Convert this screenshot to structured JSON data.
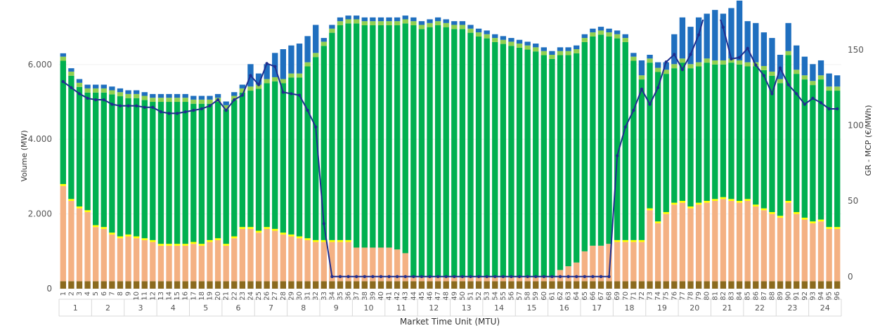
{
  "chart_data": {
    "type": "bar",
    "stacked": true,
    "xlabel": "Market Time Unit (MTU)",
    "ylabel": "Volume (MW)",
    "y2label": "GR - MCP (€/MWh)",
    "ylim": [
      0,
      7200
    ],
    "y2lim": [
      -8,
      170
    ],
    "yticks": [
      {
        "v": 0,
        "label": "0"
      },
      {
        "v": 2000,
        "label": "2.000"
      },
      {
        "v": 4000,
        "label": "4.000"
      },
      {
        "v": 6000,
        "label": "6.000"
      }
    ],
    "y2ticks": [
      {
        "v": 0,
        "label": "0"
      },
      {
        "v": 50,
        "label": "50"
      },
      {
        "v": 100,
        "label": "100"
      },
      {
        "v": 150,
        "label": "150"
      }
    ],
    "x": [
      1,
      2,
      3,
      4,
      5,
      6,
      7,
      8,
      9,
      10,
      11,
      12,
      13,
      14,
      15,
      16,
      17,
      18,
      19,
      20,
      21,
      22,
      23,
      24,
      25,
      26,
      27,
      28,
      29,
      30,
      31,
      32,
      33,
      34,
      35,
      36,
      37,
      38,
      39,
      40,
      41,
      42,
      43,
      44,
      45,
      46,
      47,
      48,
      49,
      50,
      51,
      52,
      53,
      54,
      55,
      56,
      57,
      58,
      59,
      60,
      61,
      62,
      63,
      64,
      65,
      66,
      67,
      68,
      69,
      70,
      71,
      72,
      73,
      74,
      75,
      76,
      77,
      78,
      79,
      80,
      81,
      82,
      83,
      84,
      85,
      86,
      87,
      88,
      89,
      90,
      91,
      92,
      93,
      94,
      95,
      96
    ],
    "hours": [
      "1",
      "2",
      "3",
      "4",
      "5",
      "6",
      "7",
      "8",
      "9",
      "10",
      "11",
      "12",
      "13",
      "14",
      "15",
      "16",
      "17",
      "18",
      "19",
      "20",
      "21",
      "22",
      "23",
      "24"
    ],
    "series": [
      {
        "color": "#8b6a1e",
        "values": [
          200,
          200,
          200,
          200,
          200,
          200,
          200,
          200,
          200,
          200,
          200,
          200,
          200,
          200,
          200,
          200,
          200,
          200,
          200,
          200,
          200,
          200,
          200,
          200,
          200,
          200,
          200,
          200,
          200,
          200,
          200,
          200,
          200,
          200,
          200,
          200,
          200,
          200,
          200,
          200,
          200,
          200,
          200,
          200,
          200,
          200,
          200,
          200,
          200,
          200,
          200,
          200,
          200,
          200,
          200,
          200,
          200,
          200,
          200,
          200,
          200,
          200,
          200,
          200,
          200,
          200,
          200,
          200,
          200,
          200,
          200,
          200,
          200,
          200,
          200,
          200,
          200,
          200,
          200,
          200,
          200,
          200,
          200,
          200,
          200,
          200,
          200,
          200,
          200,
          200,
          200,
          200,
          200,
          200,
          200,
          200
        ]
      },
      {
        "color": "#f4b183",
        "values": [
          2550,
          2150,
          1950,
          1850,
          1450,
          1400,
          1250,
          1150,
          1200,
          1150,
          1100,
          1050,
          950,
          950,
          950,
          950,
          1000,
          950,
          1050,
          1100,
          950,
          1150,
          1400,
          1400,
          1300,
          1400,
          1350,
          1250,
          1200,
          1150,
          1100,
          1050,
          1050,
          1050,
          1050,
          1050,
          900,
          900,
          900,
          900,
          900,
          850,
          750,
          100,
          100,
          100,
          100,
          100,
          100,
          100,
          100,
          100,
          100,
          100,
          100,
          100,
          100,
          100,
          100,
          100,
          100,
          300,
          400,
          500,
          800,
          950,
          950,
          1000,
          1050,
          1050,
          1050,
          1050,
          1900,
          1550,
          1800,
          2050,
          2100,
          1950,
          2050,
          2100,
          2150,
          2200,
          2150,
          2100,
          2150,
          2000,
          1900,
          1800,
          1700,
          2100,
          1800,
          1650,
          1550,
          1600,
          1400,
          1400
        ]
      },
      {
        "color": "#ffff00",
        "values": [
          50,
          50,
          50,
          50,
          50,
          50,
          50,
          50,
          50,
          50,
          50,
          50,
          50,
          50,
          50,
          50,
          50,
          50,
          50,
          50,
          50,
          50,
          50,
          50,
          50,
          50,
          50,
          50,
          50,
          50,
          50,
          50,
          50,
          50,
          50,
          50,
          0,
          0,
          0,
          0,
          0,
          0,
          0,
          0,
          0,
          0,
          0,
          0,
          0,
          0,
          0,
          0,
          0,
          0,
          0,
          0,
          0,
          0,
          0,
          0,
          0,
          0,
          0,
          0,
          0,
          0,
          0,
          0,
          50,
          50,
          50,
          50,
          50,
          50,
          50,
          50,
          50,
          50,
          50,
          50,
          50,
          50,
          50,
          50,
          50,
          50,
          50,
          50,
          50,
          50,
          50,
          50,
          50,
          50,
          50,
          50
        ]
      },
      {
        "color": "#00b050",
        "values": [
          3300,
          3300,
          3200,
          3150,
          3550,
          3600,
          3700,
          3750,
          3650,
          3700,
          3700,
          3700,
          3800,
          3800,
          3800,
          3800,
          3700,
          3750,
          3650,
          3650,
          3600,
          3650,
          3600,
          3650,
          3800,
          3850,
          3950,
          4000,
          4200,
          4250,
          4600,
          4900,
          5200,
          5550,
          5750,
          5800,
          6000,
          5950,
          5950,
          5950,
          5950,
          6000,
          6150,
          6750,
          6650,
          6700,
          6750,
          6700,
          6650,
          6650,
          6550,
          6450,
          6400,
          6300,
          6250,
          6200,
          6150,
          6100,
          6050,
          5950,
          5850,
          5750,
          5650,
          5600,
          5600,
          5600,
          5650,
          5550,
          5400,
          5300,
          4800,
          4300,
          3900,
          4000,
          3700,
          3600,
          3700,
          3700,
          3650,
          3700,
          3600,
          3550,
          3650,
          3650,
          3550,
          3700,
          3700,
          3650,
          3550,
          3900,
          3700,
          3700,
          3650,
          3750,
          3650,
          3650
        ]
      },
      {
        "color": "#92d050",
        "values": [
          110,
          110,
          110,
          110,
          110,
          110,
          110,
          110,
          110,
          110,
          110,
          110,
          110,
          110,
          110,
          110,
          110,
          110,
          110,
          110,
          110,
          110,
          110,
          110,
          110,
          110,
          110,
          110,
          110,
          110,
          110,
          110,
          110,
          110,
          110,
          110,
          110,
          110,
          110,
          110,
          110,
          110,
          110,
          110,
          110,
          110,
          110,
          110,
          110,
          110,
          110,
          110,
          110,
          110,
          110,
          110,
          110,
          110,
          110,
          110,
          110,
          110,
          110,
          110,
          110,
          110,
          110,
          110,
          110,
          110,
          110,
          110,
          110,
          110,
          110,
          110,
          110,
          110,
          110,
          110,
          110,
          110,
          110,
          110,
          110,
          110,
          110,
          110,
          110,
          110,
          110,
          110,
          110,
          110,
          110,
          110
        ]
      },
      {
        "color": "#1f6fbf",
        "values": [
          90,
          90,
          100,
          100,
          100,
          100,
          100,
          100,
          100,
          100,
          100,
          100,
          100,
          100,
          100,
          100,
          100,
          100,
          100,
          100,
          100,
          100,
          100,
          600,
          300,
          400,
          650,
          800,
          750,
          800,
          700,
          750,
          100,
          100,
          100,
          100,
          100,
          100,
          100,
          100,
          100,
          100,
          100,
          100,
          100,
          100,
          100,
          100,
          100,
          100,
          100,
          100,
          100,
          100,
          100,
          100,
          100,
          100,
          100,
          100,
          100,
          100,
          100,
          100,
          100,
          100,
          100,
          100,
          100,
          100,
          100,
          400,
          100,
          150,
          200,
          800,
          1100,
          1000,
          1200,
          1200,
          1350,
          1250,
          1350,
          1600,
          1100,
          1050,
          900,
          900,
          650,
          750,
          650,
          500,
          450,
          400,
          350,
          300
        ]
      }
    ],
    "price_line": {
      "color": "#1f2e8f",
      "values": [
        129,
        125,
        121,
        118,
        117,
        117,
        114,
        113,
        113,
        113,
        112,
        112,
        109,
        108,
        108,
        109,
        110,
        111,
        113,
        117,
        110,
        117,
        120,
        133,
        127,
        141,
        139,
        122,
        121,
        120,
        110,
        99,
        35,
        0,
        0,
        0,
        0,
        0,
        0,
        0,
        0,
        0,
        0,
        0,
        0,
        0,
        0,
        0,
        0,
        0,
        0,
        0,
        0,
        0,
        0,
        0,
        0,
        0,
        0,
        0,
        0,
        0,
        0,
        0,
        0,
        0,
        0,
        0,
        80,
        99,
        110,
        124,
        114,
        125,
        142,
        147,
        137,
        147,
        160,
        179,
        180,
        165,
        144,
        145,
        151,
        140,
        133,
        121,
        138,
        127,
        121,
        114,
        118,
        115,
        111,
        111
      ]
    }
  }
}
